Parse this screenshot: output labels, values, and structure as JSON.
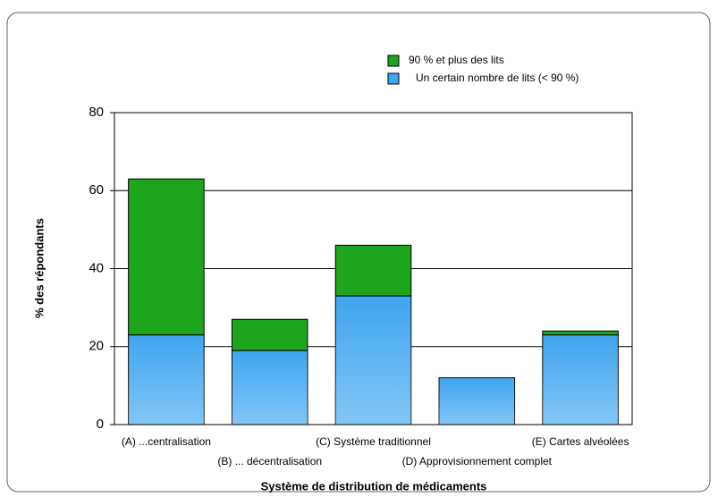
{
  "chart_data": {
    "type": "stacked_bar",
    "categories": [
      "(A) ...centralisation",
      "(B) ... décentralisation",
      "(C) Système traditionnel",
      "(D) Approvisionnement complet",
      "(E) Cartes alvéolées"
    ],
    "series": [
      {
        "name": "Un certain nombre de lits (< 90 %)",
        "color": "#3fa6f0",
        "values": [
          23,
          19,
          33,
          12,
          23
        ]
      },
      {
        "name": "90 % et plus des lits",
        "color": "#1ea51e",
        "values": [
          40,
          8,
          13,
          0,
          1
        ]
      }
    ],
    "ylim": [
      0,
      80
    ],
    "yticks": [
      0,
      20,
      40,
      60,
      80
    ],
    "grid": true,
    "ylabel": "% des répondants",
    "xlabel": "Système de distribution de médicaments"
  }
}
